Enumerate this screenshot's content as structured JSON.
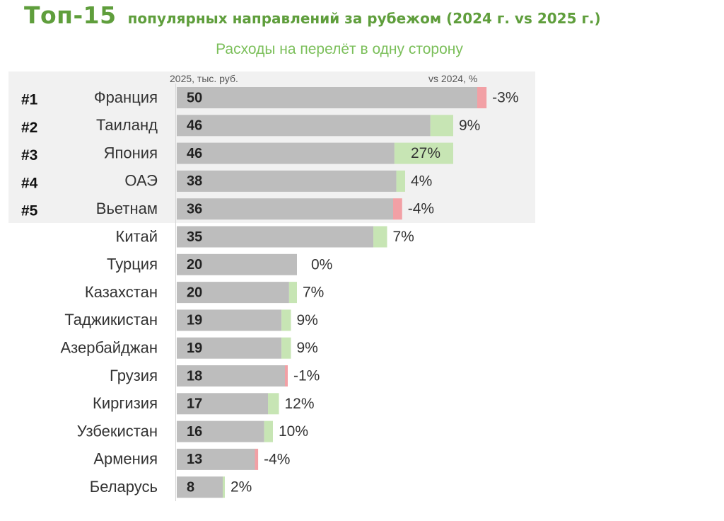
{
  "header": {
    "title_prefix": "Топ-15",
    "title_rest": "популярных направлений за рубежом (2024 г. vs 2025 г.)",
    "subtitle": "Расходы на перелёт в одну сторону",
    "col_value_label": "2025, тыс. руб.",
    "col_change_label": "vs 2024, %"
  },
  "colors": {
    "title": "#5f9e3c",
    "subtitle": "#7bbf5a",
    "bar": "#bdbdbd",
    "increase": "#c7e5b4",
    "decrease": "#f2a0a5",
    "top5_background": "#f1f1f1"
  },
  "chart_data": {
    "type": "bar",
    "orientation": "horizontal",
    "value_unit": "тыс. руб.",
    "xlim": [
      0,
      60
    ],
    "highlight_top": 5,
    "ranks": [
      "#1",
      "#2",
      "#3",
      "#4",
      "#5"
    ],
    "categories": [
      "Франция",
      "Таиланд",
      "Япония",
      "ОАЭ",
      "Вьетнам",
      "Китай",
      "Турция",
      "Казахстан",
      "Таджикистан",
      "Азербайджан",
      "Грузия",
      "Киргизия",
      "Узбекистан",
      "Армения",
      "Беларусь"
    ],
    "values": [
      50,
      46,
      46,
      38,
      36,
      35,
      20,
      20,
      19,
      19,
      18,
      17,
      16,
      13,
      8
    ],
    "change_pct": [
      -3,
      9,
      27,
      4,
      -4,
      7,
      0,
      7,
      9,
      9,
      -1,
      12,
      10,
      -4,
      2
    ],
    "change_labels": [
      "-3%",
      "9%",
      "27%",
      "4%",
      "-4%",
      "7%",
      "0%",
      "7%",
      "9%",
      "9%",
      "-1%",
      "12%",
      "10%",
      "-4%",
      "2%"
    ]
  }
}
